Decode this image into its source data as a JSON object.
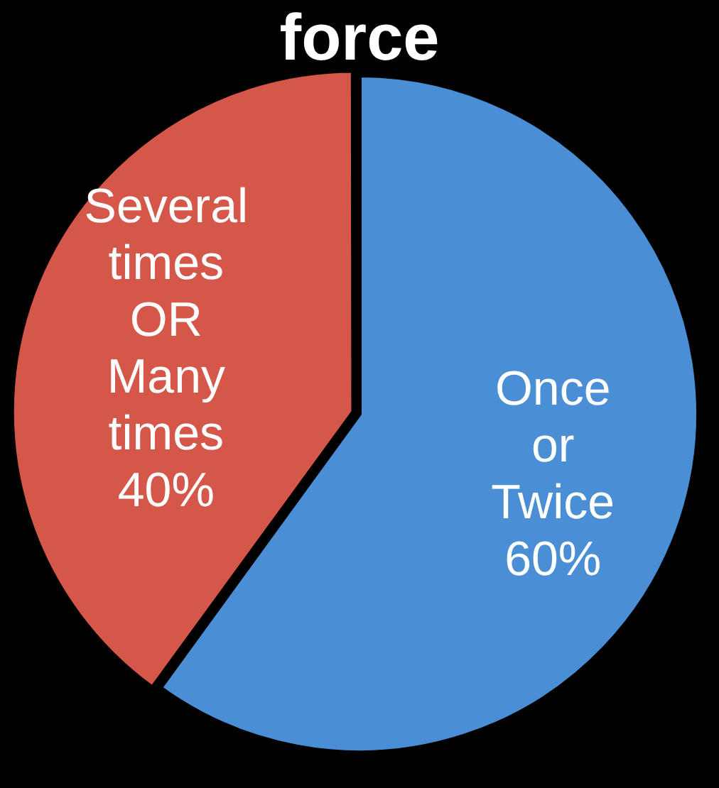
{
  "chart_data": {
    "type": "pie",
    "title": "force",
    "categories": [
      "Once or Twice",
      "Several times OR Many times"
    ],
    "values": [
      60,
      40
    ],
    "colors": [
      "#4a8ed6",
      "#d4574a"
    ],
    "value_labels": [
      "60%",
      "40%"
    ],
    "legend": false
  }
}
